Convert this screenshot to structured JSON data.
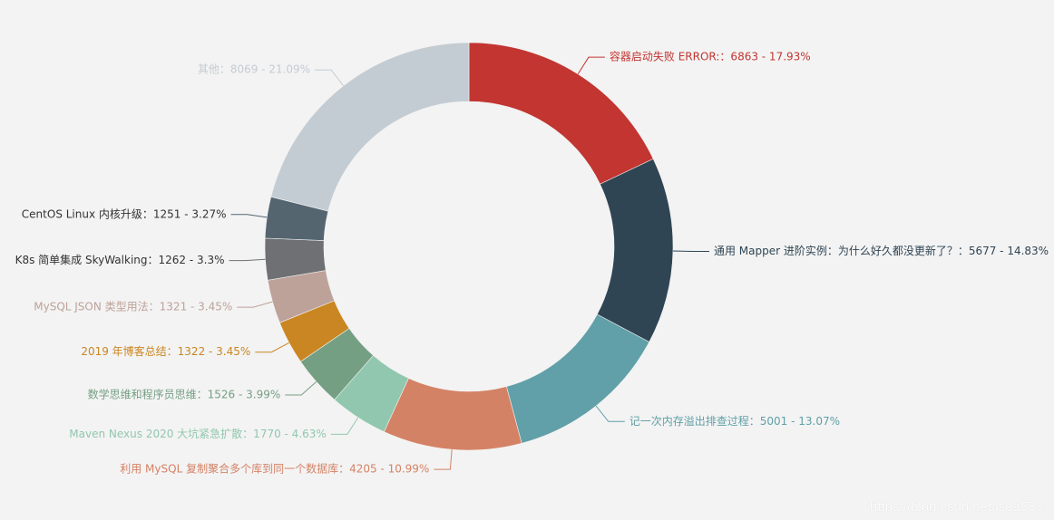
{
  "chart_data": {
    "type": "pie",
    "variant": "donut",
    "label_format": "{name}：{value} - {percent}%",
    "slices": [
      {
        "name": "容器启动失败 ERROR:",
        "value": 6863,
        "percent": "17.93",
        "color": "#c23531"
      },
      {
        "name": "通用 Mapper 进阶实例：为什么好久都没更新了？",
        "value": 5677,
        "percent": "14.83",
        "color": "#2f4554"
      },
      {
        "name": "记一次内存溢出排查过程",
        "value": 5001,
        "percent": "13.07",
        "color": "#61a0a8"
      },
      {
        "name": "利用 MySQL 复制聚合多个库到同一个数据库",
        "value": 4205,
        "percent": "10.99",
        "color": "#d48265"
      },
      {
        "name": "Maven Nexus 2020 大坑紧急扩散",
        "value": 1770,
        "percent": "4.63",
        "color": "#91c7ae"
      },
      {
        "name": "数学思维和程序员思维",
        "value": 1526,
        "percent": "3.99",
        "color": "#749f83"
      },
      {
        "name": "2019 年博客总结",
        "value": 1322,
        "percent": "3.45",
        "color": "#ca8622"
      },
      {
        "name": "MySQL JSON 类型用法",
        "value": 1321,
        "percent": "3.45",
        "color": "#bda29a"
      },
      {
        "name": "K8s 简单集成 SkyWalking",
        "value": 1262,
        "percent": "3.3",
        "color": "#6e7074"
      },
      {
        "name": "CentOS Linux 内核升级",
        "value": 1251,
        "percent": "3.27",
        "color": "#546570"
      },
      {
        "name": "其他",
        "value": 8069,
        "percent": "21.09",
        "color": "#c4ccd3"
      }
    ],
    "label_colors": {
      "CentOS Linux 内核升级": "#333333",
      "K8s 简单集成 SkyWalking": "#333333"
    }
  },
  "watermark": "https://blog.csdn.net/isea533"
}
